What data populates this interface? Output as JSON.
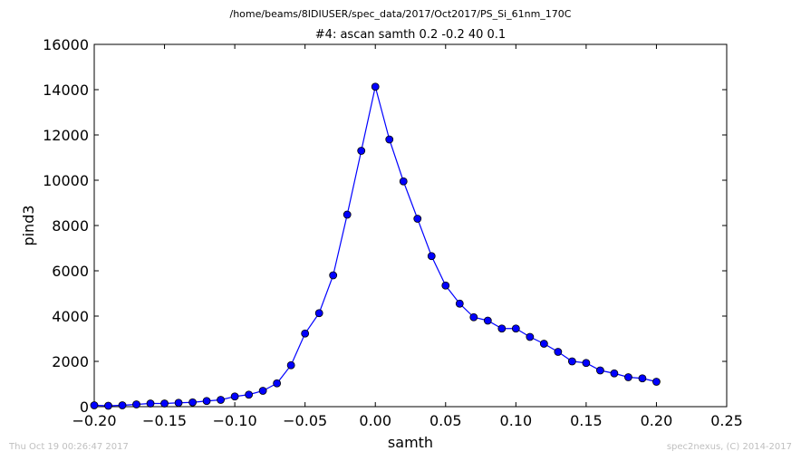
{
  "header": {
    "path": "/home/beams/8IDIUSER/spec_data/2017/Oct2017/PS_Si_61nm_170C"
  },
  "footer": {
    "timestamp": "Thu Oct 19 00:26:47 2017",
    "credit": "spec2nexus, (C) 2014-2017"
  },
  "chart_data": {
    "type": "line",
    "title": "#4: ascan  samth 0.2 -0.2  40 0.1",
    "xlabel": "samth",
    "ylabel": "pind3",
    "xlim": [
      -0.2,
      0.25
    ],
    "ylim": [
      0,
      16000
    ],
    "xticks": [
      "−0.20",
      "−0.15",
      "−0.10",
      "−0.05",
      "0.00",
      "0.05",
      "0.10",
      "0.15",
      "0.20",
      "0.25"
    ],
    "xtick_values": [
      -0.2,
      -0.15,
      -0.1,
      -0.05,
      0.0,
      0.05,
      0.1,
      0.15,
      0.2,
      0.25
    ],
    "yticks": [
      "0",
      "2000",
      "4000",
      "6000",
      "8000",
      "10000",
      "12000",
      "14000",
      "16000"
    ],
    "ytick_values": [
      0,
      2000,
      4000,
      6000,
      8000,
      10000,
      12000,
      14000,
      16000
    ],
    "grid": false,
    "series_color": "#0000ff",
    "marker_color": "#0000ff",
    "marker_edge": "#000000",
    "x": [
      -0.2,
      -0.19,
      -0.18,
      -0.17,
      -0.16,
      -0.15,
      -0.14,
      -0.13,
      -0.12,
      -0.11,
      -0.1,
      -0.09,
      -0.08,
      -0.07,
      -0.06,
      -0.05,
      -0.04,
      -0.03,
      -0.02,
      -0.01,
      0.0,
      0.01,
      0.02,
      0.03,
      0.04,
      0.05,
      0.06,
      0.07,
      0.08,
      0.09,
      0.1,
      0.11,
      0.12,
      0.13,
      0.14,
      0.15,
      0.16,
      0.17,
      0.18,
      0.19,
      0.2
    ],
    "y": [
      60,
      40,
      60,
      100,
      140,
      140,
      170,
      190,
      250,
      300,
      450,
      530,
      700,
      1030,
      1830,
      3230,
      4130,
      5800,
      8480,
      11300,
      14130,
      11800,
      9950,
      8300,
      6650,
      5350,
      4550,
      3950,
      3800,
      3450,
      3450,
      3080,
      2780,
      2420,
      2000,
      1930,
      1600,
      1470,
      1300,
      1250,
      1100
    ]
  }
}
